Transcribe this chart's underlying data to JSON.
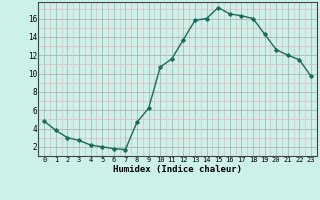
{
  "x": [
    0,
    1,
    2,
    3,
    4,
    5,
    6,
    7,
    8,
    9,
    10,
    11,
    12,
    13,
    14,
    15,
    16,
    17,
    18,
    19,
    20,
    21,
    22,
    23
  ],
  "y": [
    4.8,
    3.8,
    3.0,
    2.7,
    2.2,
    2.0,
    1.8,
    1.7,
    4.7,
    6.2,
    10.7,
    11.6,
    13.7,
    15.8,
    16.0,
    17.2,
    16.5,
    16.3,
    16.0,
    14.3,
    12.6,
    12.0,
    11.5,
    9.7
  ],
  "line_color": "#1a6b5a",
  "marker": "D",
  "markersize": 1.8,
  "linewidth": 1.0,
  "bg_color": "#ccf0ea",
  "grid_color_major": "#aaaaaa",
  "grid_color_minor": "#e8b8b8",
  "xlabel": "Humidex (Indice chaleur)",
  "xlabel_fontsize": 6.5,
  "ylabel_ticks": [
    2,
    4,
    6,
    8,
    10,
    12,
    14,
    16
  ],
  "xtick_labels": [
    "0",
    "1",
    "2",
    "3",
    "4",
    "5",
    "6",
    "7",
    "8",
    "9",
    "10",
    "11",
    "12",
    "13",
    "14",
    "15",
    "16",
    "17",
    "18",
    "19",
    "20",
    "21",
    "22",
    "23"
  ],
  "xlim": [
    -0.5,
    23.5
  ],
  "ylim": [
    1.0,
    17.8
  ],
  "xtick_fontsize": 5.0,
  "ytick_fontsize": 5.5
}
